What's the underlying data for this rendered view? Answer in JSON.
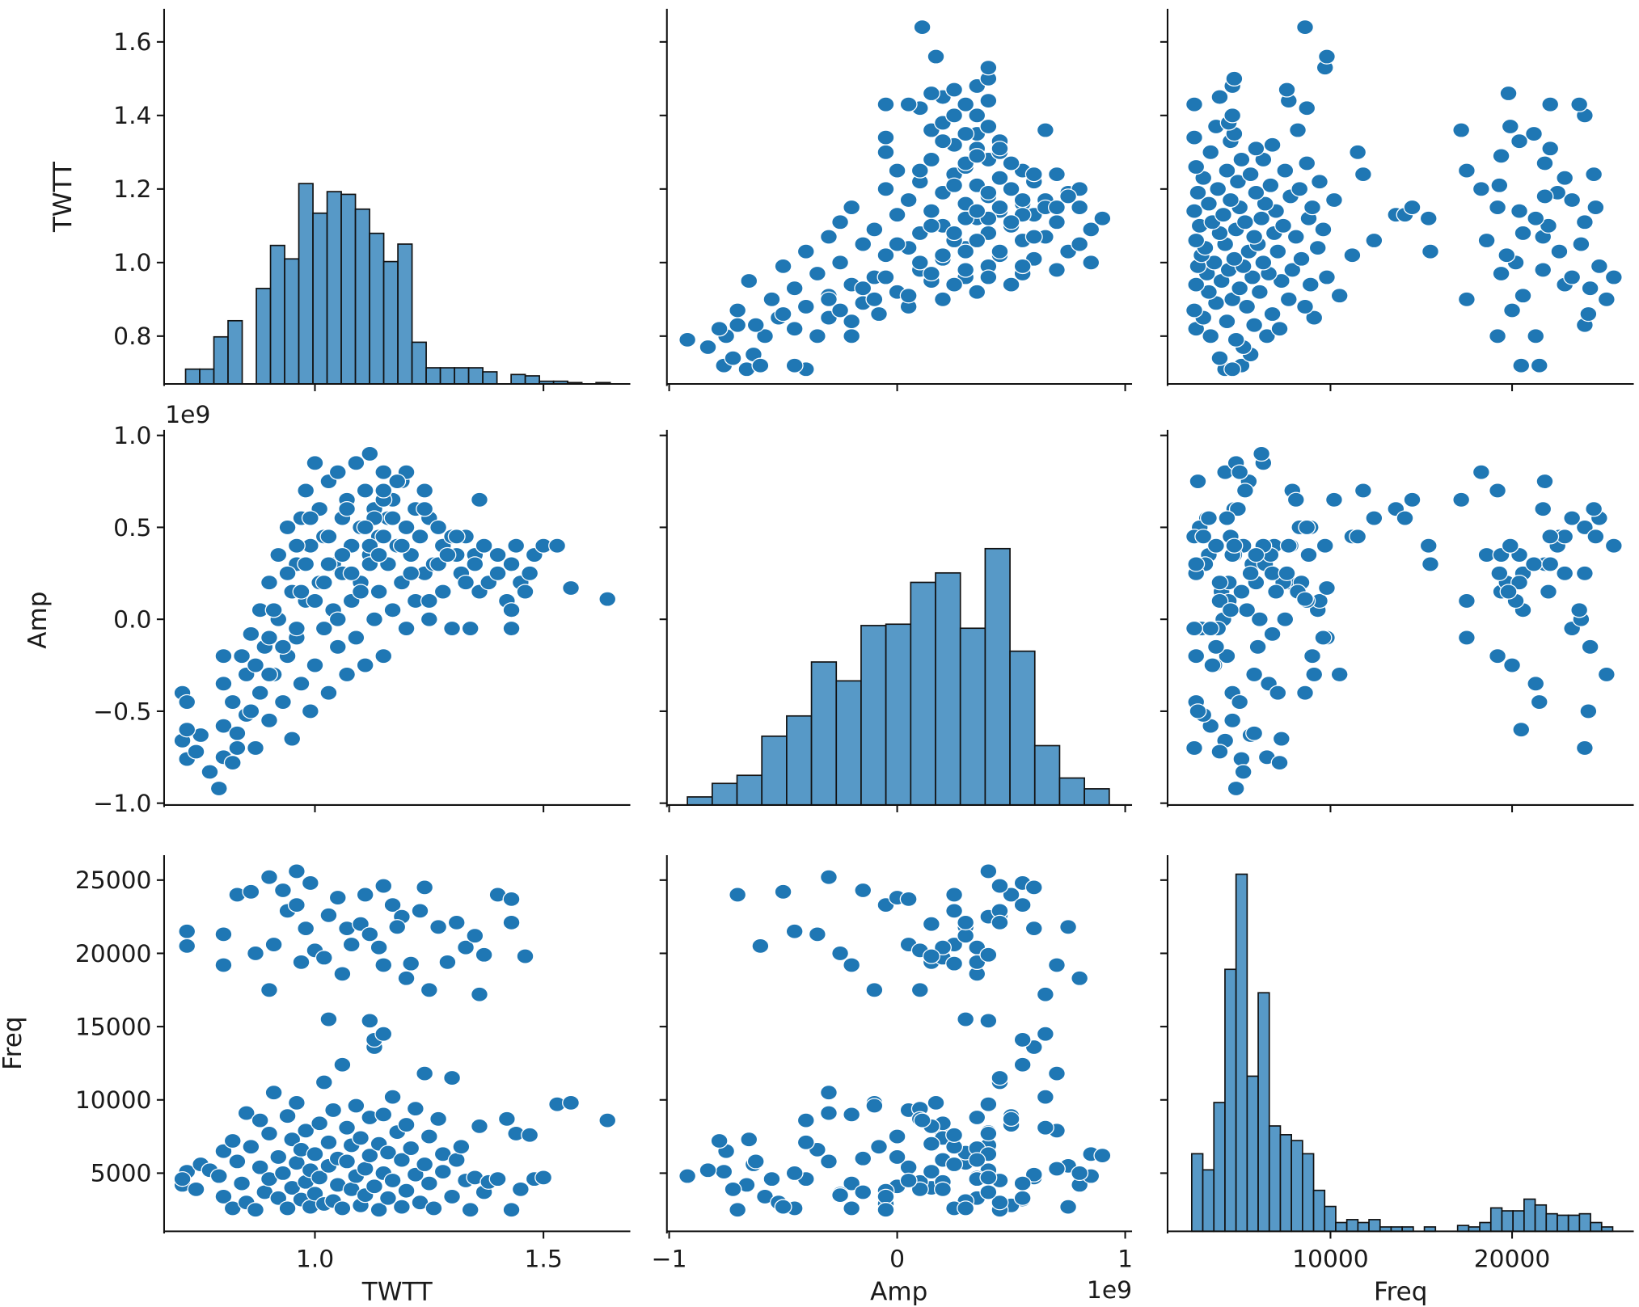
{
  "chart_data": {
    "type": "scatter",
    "layout": "pairplot",
    "variables": [
      "TWTT",
      "Amp",
      "Freq"
    ],
    "amp_offset_label": "1e9",
    "amp_scale": 1000000000,
    "marker_color": "#1f77b4",
    "hist_color": "#5799c7",
    "grid": false,
    "axes": {
      "TWTT": {
        "label": "TWTT",
        "range": [
          0.67,
          1.69
        ],
        "ticks": [
          0.8,
          1.0,
          1.2,
          1.4,
          1.6
        ],
        "tick_labels": [
          "0.8",
          "1.0",
          "1.2",
          "1.4",
          "1.6"
        ],
        "x_ticks": [
          1.0,
          1.5
        ],
        "x_tick_labels": [
          "1.0",
          "1.5"
        ]
      },
      "Amp": {
        "label": "Amp",
        "range": [
          -1.01,
          1.03
        ],
        "ticks": [
          -1.0,
          -0.5,
          0.0,
          0.5,
          1.0
        ],
        "tick_labels": [
          "−1.0",
          "−0.5",
          "0.0",
          "0.5",
          "1.0"
        ],
        "x_ticks": [
          -1,
          0,
          1
        ],
        "x_tick_labels": [
          "−1",
          "0",
          "1"
        ]
      },
      "Freq": {
        "label": "Freq",
        "range": [
          1030,
          26700
        ],
        "ticks": [
          5000,
          10000,
          15000,
          20000,
          25000
        ],
        "tick_labels": [
          "5000",
          "10000",
          "15000",
          "20000",
          "25000"
        ],
        "x_ticks": [
          10000,
          20000
        ],
        "x_tick_labels": [
          "10000",
          "20000"
        ]
      }
    },
    "histograms": {
      "TWTT": {
        "range": [
          0.717,
          1.646
        ],
        "ymax": 279,
        "counts": [
          11,
          11,
          35,
          47,
          0,
          71,
          103,
          93,
          149,
          127,
          143,
          141,
          130,
          112,
          91,
          104,
          31,
          12,
          12,
          12,
          12,
          9,
          0,
          7,
          6,
          2,
          2,
          1,
          0,
          1
        ]
      },
      "Amp": {
        "range": [
          -0.92,
          0.93
        ],
        "ymax": 278,
        "counts": [
          6,
          16,
          22,
          51,
          66,
          106,
          92,
          133,
          134,
          165,
          172,
          131,
          190,
          114,
          44,
          20,
          12
        ]
      },
      "Freq": {
        "range": [
          2360,
          25540
        ],
        "ymax": 257,
        "counts": [
          53,
          42,
          88,
          179,
          244,
          106,
          163,
          72,
          66,
          62,
          53,
          28,
          17,
          6,
          8,
          6,
          8,
          3,
          3,
          3,
          0,
          3,
          0,
          0,
          4,
          3,
          6,
          16,
          14,
          14,
          22,
          18,
          12,
          11,
          11,
          12,
          6,
          3
        ]
      }
    },
    "points_columns": [
      "TWTT",
      "Amp",
      "Freq"
    ],
    "points": [
      [
        0.71,
        -0.66,
        4200
      ],
      [
        0.72,
        -0.76,
        5100
      ],
      [
        0.74,
        -0.72,
        3900
      ],
      [
        0.75,
        -0.63,
        5600
      ],
      [
        0.71,
        -0.4,
        4600
      ],
      [
        0.77,
        -0.83,
        5200
      ],
      [
        0.79,
        -0.92,
        4800
      ],
      [
        0.8,
        -0.58,
        3400
      ],
      [
        0.8,
        -0.75,
        6500
      ],
      [
        0.82,
        -0.45,
        2600
      ],
      [
        0.82,
        -0.78,
        7200
      ],
      [
        0.83,
        -0.62,
        5800
      ],
      [
        0.84,
        -0.2,
        4300
      ],
      [
        0.85,
        -0.3,
        9100
      ],
      [
        0.85,
        -0.52,
        3000
      ],
      [
        0.86,
        -0.08,
        6800
      ],
      [
        0.87,
        -0.7,
        2500
      ],
      [
        0.88,
        0.05,
        5400
      ],
      [
        0.88,
        -0.4,
        8600
      ],
      [
        0.89,
        -0.15,
        3700
      ],
      [
        0.9,
        0.2,
        7700
      ],
      [
        0.9,
        -0.55,
        4600
      ],
      [
        0.91,
        -0.3,
        10500
      ],
      [
        0.92,
        0.35,
        3300
      ],
      [
        0.92,
        0.0,
        6100
      ],
      [
        0.93,
        -0.45,
        5000
      ],
      [
        0.94,
        0.5,
        8900
      ],
      [
        0.94,
        -0.2,
        2600
      ],
      [
        0.95,
        0.15,
        4000
      ],
      [
        0.95,
        -0.65,
        7300
      ],
      [
        0.96,
        0.3,
        5700
      ],
      [
        0.96,
        -0.1,
        9800
      ],
      [
        0.97,
        0.55,
        3200
      ],
      [
        0.97,
        -0.35,
        6600
      ],
      [
        0.98,
        0.1,
        4400
      ],
      [
        0.98,
        0.7,
        7900
      ],
      [
        0.99,
        -0.5,
        2700
      ],
      [
        0.99,
        0.4,
        5200
      ],
      [
        1.0,
        0.85,
        6300
      ],
      [
        1.0,
        -0.25,
        3600
      ],
      [
        1.01,
        0.2,
        8400
      ],
      [
        1.01,
        0.6,
        4700
      ],
      [
        1.02,
        -0.05,
        2900
      ],
      [
        1.02,
        0.45,
        11200
      ],
      [
        1.03,
        0.75,
        5500
      ],
      [
        1.03,
        -0.4,
        7100
      ],
      [
        1.04,
        0.3,
        3100
      ],
      [
        1.04,
        0.05,
        9300
      ],
      [
        1.05,
        0.8,
        4200
      ],
      [
        1.05,
        -0.15,
        6000
      ],
      [
        1.06,
        0.55,
        12400
      ],
      [
        1.06,
        0.25,
        2600
      ],
      [
        1.07,
        -0.3,
        5800
      ],
      [
        1.07,
        0.65,
        8100
      ],
      [
        1.08,
        0.1,
        3900
      ],
      [
        1.08,
        0.4,
        6900
      ],
      [
        1.09,
        0.85,
        4800
      ],
      [
        1.09,
        -0.1,
        9600
      ],
      [
        1.1,
        0.5,
        2800
      ],
      [
        1.1,
        0.2,
        7400
      ],
      [
        1.11,
        0.7,
        5300
      ],
      [
        1.11,
        -0.25,
        3500
      ],
      [
        1.12,
        0.35,
        8800
      ],
      [
        1.12,
        0.9,
        6200
      ],
      [
        1.13,
        0.0,
        4100
      ],
      [
        1.13,
        0.6,
        13600
      ],
      [
        1.14,
        0.45,
        2500
      ],
      [
        1.14,
        0.15,
        7000
      ],
      [
        1.15,
        0.8,
        5000
      ],
      [
        1.15,
        -0.2,
        9000
      ],
      [
        1.16,
        0.55,
        3300
      ],
      [
        1.16,
        0.3,
        6400
      ],
      [
        1.17,
        0.65,
        10200
      ],
      [
        1.17,
        0.05,
        4500
      ],
      [
        1.18,
        0.4,
        7800
      ],
      [
        1.19,
        0.75,
        2700
      ],
      [
        1.19,
        0.2,
        5900
      ],
      [
        1.2,
        0.5,
        8300
      ],
      [
        1.2,
        -0.05,
        3800
      ],
      [
        1.21,
        0.35,
        6700
      ],
      [
        1.22,
        0.6,
        4900
      ],
      [
        1.22,
        0.1,
        9400
      ],
      [
        1.23,
        0.45,
        3000
      ],
      [
        1.24,
        0.7,
        11800
      ],
      [
        1.24,
        0.25,
        5600
      ],
      [
        1.25,
        0.0,
        7500
      ],
      [
        1.25,
        0.55,
        4300
      ],
      [
        1.26,
        0.3,
        2600
      ],
      [
        1.27,
        0.5,
        8700
      ],
      [
        1.28,
        0.15,
        5100
      ],
      [
        1.28,
        0.4,
        6300
      ],
      [
        1.3,
        0.45,
        11500
      ],
      [
        1.3,
        -0.05,
        3400
      ],
      [
        1.31,
        0.35,
        5900
      ],
      [
        1.32,
        0.25,
        6800
      ],
      [
        1.33,
        0.45,
        4500
      ],
      [
        1.34,
        -0.05,
        2500
      ],
      [
        1.35,
        0.35,
        4700
      ],
      [
        1.36,
        0.15,
        8200
      ],
      [
        1.37,
        0.4,
        3700
      ],
      [
        1.38,
        0.2,
        4400
      ],
      [
        1.4,
        0.35,
        4600
      ],
      [
        1.42,
        0.1,
        8700
      ],
      [
        1.43,
        -0.05,
        2500
      ],
      [
        1.44,
        0.4,
        7700
      ],
      [
        1.45,
        0.2,
        3900
      ],
      [
        1.47,
        0.25,
        7600
      ],
      [
        1.48,
        0.35,
        4600
      ],
      [
        1.5,
        0.4,
        4700
      ],
      [
        1.53,
        0.4,
        9700
      ],
      [
        1.56,
        0.17,
        9800
      ],
      [
        1.64,
        0.11,
        8600
      ],
      [
        1.03,
        0.3,
        15500
      ],
      [
        1.12,
        0.4,
        15400
      ],
      [
        1.13,
        0.55,
        14100
      ],
      [
        1.15,
        0.65,
        14500
      ],
      [
        0.72,
        -0.45,
        21500
      ],
      [
        0.72,
        -0.6,
        20500
      ],
      [
        0.8,
        -0.35,
        21300
      ],
      [
        0.8,
        -0.2,
        19200
      ],
      [
        0.83,
        -0.7,
        24000
      ],
      [
        0.86,
        -0.5,
        24200
      ],
      [
        0.87,
        -0.25,
        20000
      ],
      [
        0.9,
        -0.3,
        25200
      ],
      [
        0.9,
        -0.1,
        17500
      ],
      [
        0.91,
        0.05,
        20600
      ],
      [
        0.93,
        -0.15,
        24300
      ],
      [
        0.94,
        0.25,
        22900
      ],
      [
        0.96,
        0.4,
        25600
      ],
      [
        0.96,
        -0.05,
        23300
      ],
      [
        0.97,
        0.15,
        19400
      ],
      [
        0.98,
        0.3,
        21700
      ],
      [
        0.99,
        0.55,
        24800
      ],
      [
        1.0,
        0.1,
        20200
      ],
      [
        1.02,
        0.2,
        19700
      ],
      [
        1.03,
        0.45,
        22600
      ],
      [
        1.05,
        0.0,
        23800
      ],
      [
        1.06,
        0.35,
        18600
      ],
      [
        1.07,
        0.6,
        21700
      ],
      [
        1.08,
        0.25,
        20600
      ],
      [
        1.1,
        0.15,
        22000
      ],
      [
        1.11,
        0.5,
        24000
      ],
      [
        1.12,
        0.3,
        21300
      ],
      [
        1.14,
        0.35,
        20400
      ],
      [
        1.15,
        0.7,
        19200
      ],
      [
        1.15,
        0.45,
        24600
      ],
      [
        1.17,
        0.55,
        23300
      ],
      [
        1.19,
        0.4,
        22500
      ],
      [
        1.21,
        0.25,
        19300
      ],
      [
        1.23,
        0.45,
        22900
      ],
      [
        1.24,
        0.6,
        24500
      ],
      [
        1.25,
        0.1,
        17500
      ],
      [
        1.27,
        0.3,
        21800
      ],
      [
        1.29,
        0.35,
        19400
      ],
      [
        1.31,
        0.45,
        22100
      ],
      [
        1.33,
        0.2,
        20400
      ],
      [
        1.35,
        0.3,
        21200
      ],
      [
        1.37,
        0.4,
        19900
      ],
      [
        1.4,
        0.25,
        24000
      ],
      [
        1.43,
        0.3,
        22100
      ],
      [
        1.43,
        0.05,
        23700
      ],
      [
        1.46,
        0.15,
        19800
      ],
      [
        1.36,
        0.65,
        17200
      ],
      [
        1.2,
        0.8,
        18300
      ],
      [
        1.18,
        0.75,
        21800
      ]
    ]
  }
}
